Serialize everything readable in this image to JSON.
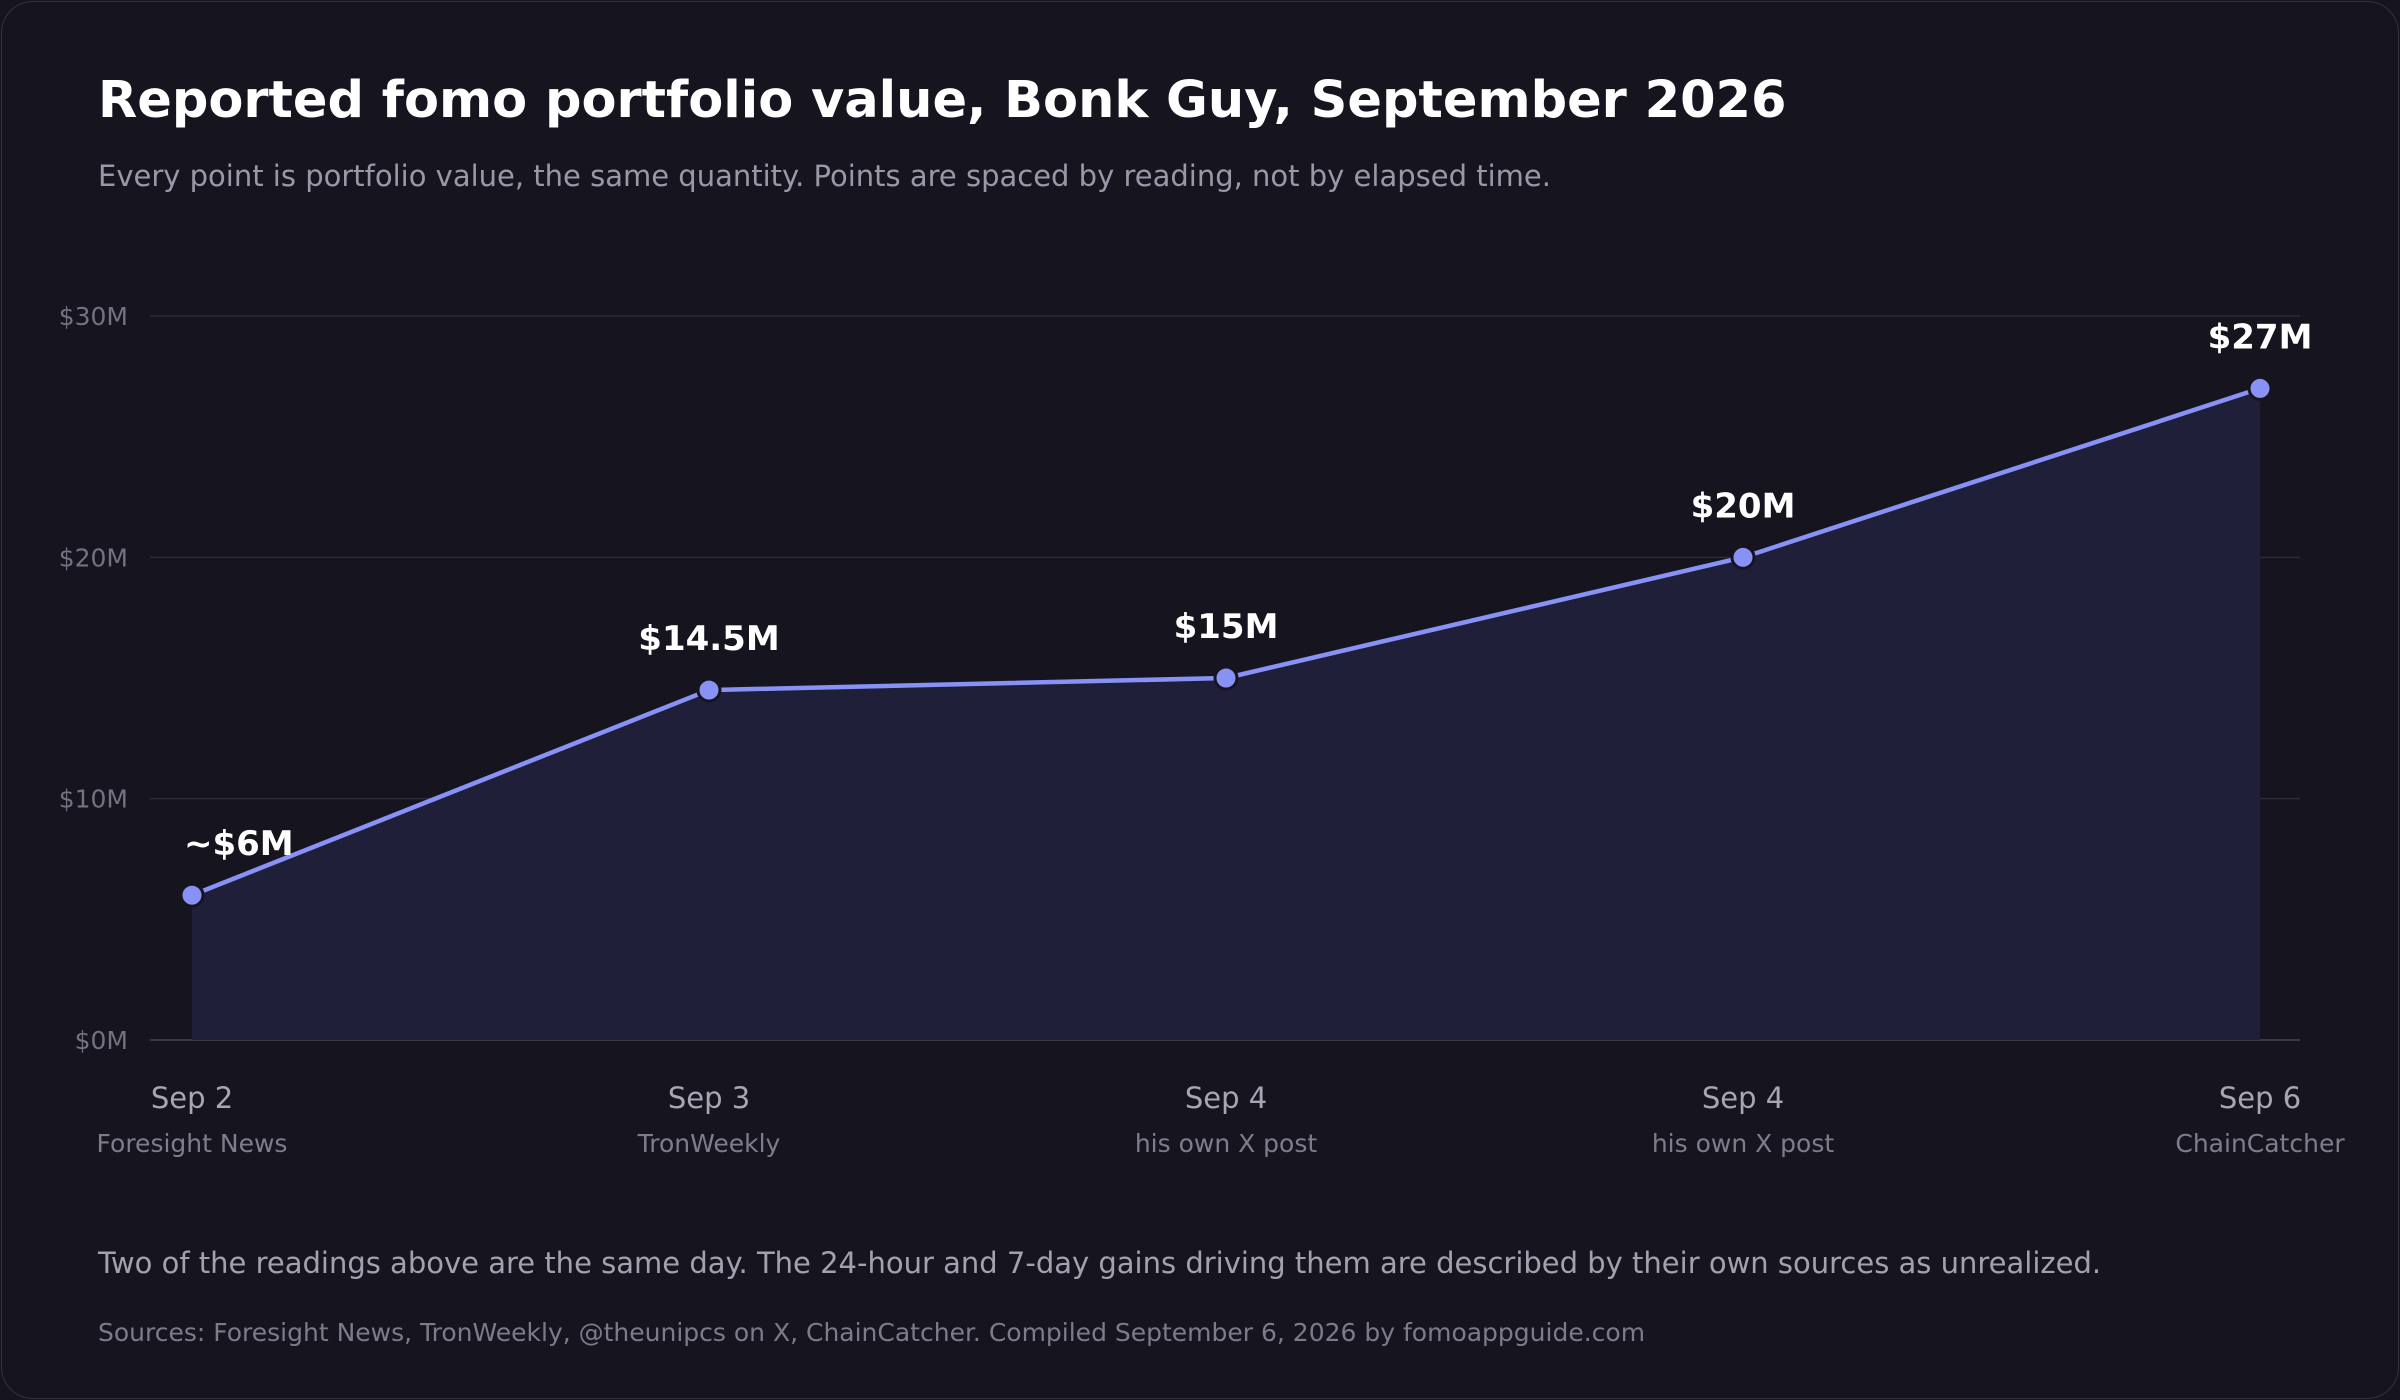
{
  "title": "Reported fomo portfolio value, Bonk Guy, September 2026",
  "subtitle": "Every point is portfolio value, the same quantity. Points are spaced by reading, not by elapsed time.",
  "note": "Two of the readings above are the same day. The 24-hour and 7-day gains driving them are described by their own sources as unrealized.",
  "sources": "Sources: Foresight News, TronWeekly, @theunipcs on X, ChainCatcher. Compiled September 6, 2026 by fomoappguide.com",
  "colors": {
    "line": "#8791f6",
    "area": "#1f1f39",
    "background": "#16151f",
    "grid": "#2b2a38"
  },
  "chart_data": {
    "type": "line",
    "title": "Reported fomo portfolio value, Bonk Guy, September 2026",
    "ylim": [
      0,
      30
    ],
    "yticks": [
      0,
      10,
      20,
      30
    ],
    "ytick_labels": [
      "$0M",
      "$10M",
      "$20M",
      "$30M"
    ],
    "grid": true,
    "x_spacing": "by reading",
    "points": [
      {
        "date": "Sep 2",
        "source": "Foresight News",
        "value": 6,
        "label": "~$6M"
      },
      {
        "date": "Sep 3",
        "source": "TronWeekly",
        "value": 14.5,
        "label": "$14.5M"
      },
      {
        "date": "Sep 4",
        "source": "his own X post",
        "value": 15,
        "label": "$15M"
      },
      {
        "date": "Sep 4",
        "source": "his own X post",
        "value": 20,
        "label": "$20M"
      },
      {
        "date": "Sep 6",
        "source": "ChainCatcher",
        "value": 27,
        "label": "$27M"
      }
    ]
  }
}
